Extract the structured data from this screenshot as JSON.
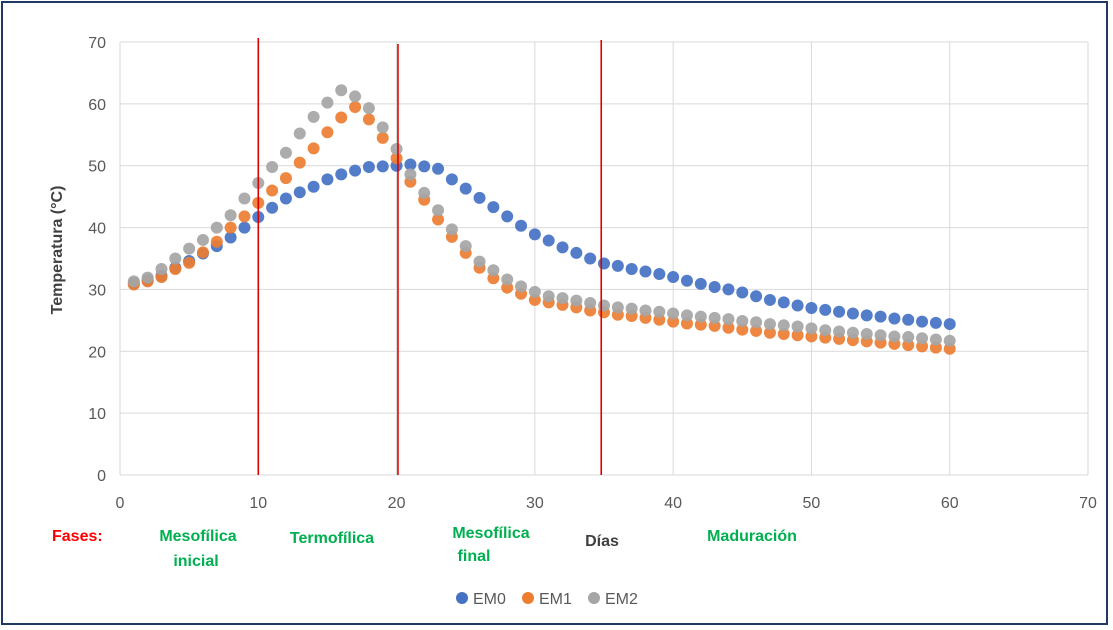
{
  "chart_data": {
    "type": "scatter",
    "xlabel": "Días",
    "ylabel": "Temperatura (°C)",
    "xlim": [
      0,
      70
    ],
    "ylim": [
      0,
      70
    ],
    "x_ticks": [
      "0",
      "10",
      "20",
      "30",
      "40",
      "50",
      "60",
      "70"
    ],
    "y_ticks": [
      "0",
      "10",
      "20",
      "30",
      "40",
      "50",
      "60",
      "70"
    ],
    "grid": true,
    "legend_position": "bottom",
    "phase_lines_x": [
      10,
      20.1,
      34.8
    ],
    "phase_line_color": "#e00000",
    "phases_label": "Fases:",
    "phases": [
      {
        "line1": "Mesofílica",
        "line2": "inicial"
      },
      {
        "line1": "Termofílica",
        "line2": ""
      },
      {
        "line1": "Mesofílica",
        "line2": "final"
      },
      {
        "line1": "Maduración",
        "line2": ""
      }
    ],
    "x": [
      1,
      2,
      3,
      4,
      5,
      6,
      7,
      8,
      9,
      10,
      11,
      12,
      13,
      14,
      15,
      16,
      17,
      18,
      19,
      20,
      21,
      22,
      23,
      24,
      25,
      26,
      27,
      28,
      29,
      30,
      31,
      32,
      33,
      34,
      35,
      36,
      37,
      38,
      39,
      40,
      41,
      42,
      43,
      44,
      45,
      46,
      47,
      48,
      49,
      50,
      51,
      52,
      53,
      54,
      55,
      56,
      57,
      58,
      59,
      60
    ],
    "series": [
      {
        "name": "EM0",
        "color": "#4472c4",
        "values": [
          31,
          31.5,
          32.2,
          33.5,
          34.6,
          35.8,
          37,
          38.4,
          40,
          41.7,
          43.2,
          44.7,
          45.7,
          46.6,
          47.8,
          48.6,
          49.2,
          49.8,
          49.9,
          50,
          50.2,
          49.9,
          49.5,
          47.8,
          46.3,
          44.8,
          43.3,
          41.8,
          40.3,
          38.9,
          37.9,
          36.8,
          35.9,
          35,
          34.2,
          33.8,
          33.3,
          32.9,
          32.5,
          32,
          31.4,
          30.9,
          30.4,
          30,
          29.5,
          28.9,
          28.3,
          27.9,
          27.4,
          27,
          26.7,
          26.4,
          26.1,
          25.8,
          25.6,
          25.3,
          25.1,
          24.8,
          24.6,
          24.4
        ]
      },
      {
        "name": "EM1",
        "color": "#ed7d31",
        "values": [
          30.8,
          31.3,
          32,
          33.3,
          34.3,
          36,
          37.7,
          40,
          41.8,
          44,
          46,
          48,
          50.5,
          52.8,
          55.4,
          57.8,
          59.5,
          57.5,
          54.5,
          51.2,
          47.4,
          44.5,
          41.3,
          38.5,
          35.9,
          33.5,
          31.8,
          30.3,
          29.3,
          28.3,
          27.9,
          27.5,
          27.1,
          26.6,
          26.3,
          25.9,
          25.7,
          25.4,
          25.1,
          24.8,
          24.5,
          24.3,
          24.1,
          23.8,
          23.5,
          23.3,
          23,
          22.8,
          22.6,
          22.4,
          22.2,
          22,
          21.8,
          21.6,
          21.4,
          21.2,
          21,
          20.8,
          20.6,
          20.4
        ]
      },
      {
        "name": "EM2",
        "color": "#a5a5a5",
        "values": [
          31.3,
          31.9,
          33.3,
          35,
          36.6,
          38,
          40,
          42,
          44.7,
          47.2,
          49.8,
          52.1,
          55.2,
          57.9,
          60.2,
          62.2,
          61.2,
          59.3,
          56.2,
          52.7,
          48.6,
          45.6,
          42.8,
          39.7,
          37,
          34.5,
          33.1,
          31.6,
          30.5,
          29.6,
          28.9,
          28.6,
          28.2,
          27.8,
          27.4,
          27.1,
          26.9,
          26.6,
          26.4,
          26.1,
          25.8,
          25.6,
          25.4,
          25.2,
          24.9,
          24.7,
          24.4,
          24.2,
          24,
          23.7,
          23.4,
          23.2,
          23,
          22.8,
          22.6,
          22.4,
          22.3,
          22.1,
          21.9,
          21.7
        ]
      }
    ]
  }
}
